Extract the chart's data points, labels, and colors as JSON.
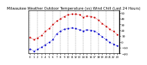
{
  "title": "Milwaukee Weather Outdoor Temperature (vs) Wind Chill (Last 24 Hours)",
  "title_fontsize": 3.8,
  "background_color": "#ffffff",
  "grid_color": "#888888",
  "red_color": "#cc0000",
  "blue_color": "#0000cc",
  "hours": [
    0,
    1,
    2,
    3,
    4,
    5,
    6,
    7,
    8,
    9,
    10,
    11,
    12,
    13,
    14,
    15,
    16,
    17,
    18,
    19,
    20,
    21,
    22,
    23
  ],
  "temp": [
    8,
    4,
    7,
    11,
    18,
    23,
    30,
    36,
    40,
    44,
    47,
    48,
    48,
    47,
    43,
    45,
    44,
    42,
    38,
    32,
    27,
    22,
    18,
    13
  ],
  "wind_chill": [
    -12,
    -16,
    -13,
    -9,
    -5,
    -1,
    4,
    14,
    19,
    22,
    23,
    24,
    23,
    21,
    19,
    21,
    20,
    19,
    14,
    9,
    4,
    -1,
    -4,
    -7
  ],
  "ylim": [
    -20,
    55
  ],
  "yticks": [
    -20,
    -10,
    0,
    10,
    20,
    30,
    40,
    50
  ],
  "ytick_fontsize": 3.2,
  "xtick_fontsize": 2.8,
  "vgrid_positions": [
    0,
    2,
    4,
    6,
    8,
    10,
    12,
    14,
    16,
    18,
    20,
    22
  ],
  "markersize": 1.5,
  "linewidth": 0.6
}
